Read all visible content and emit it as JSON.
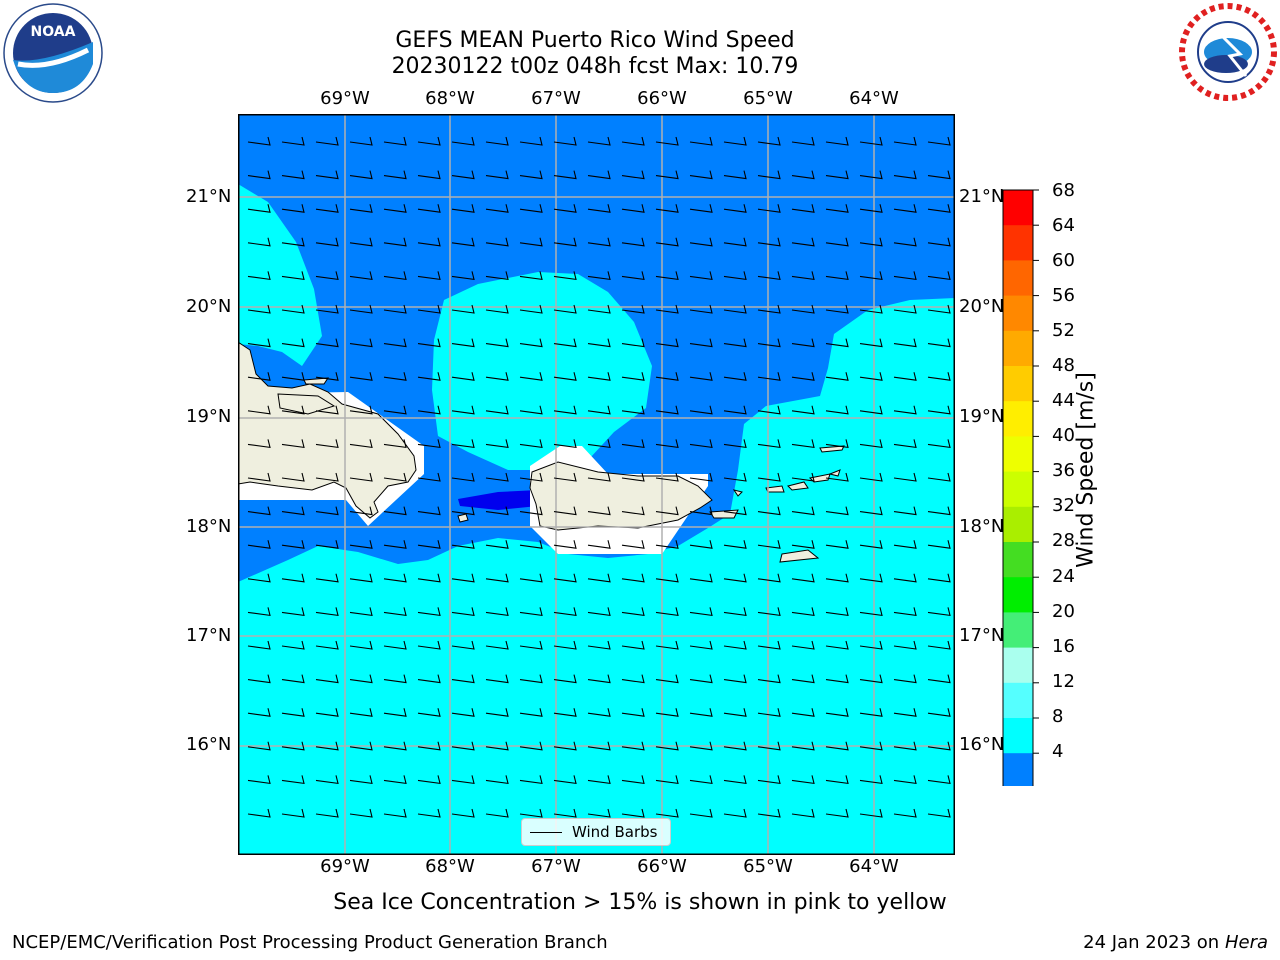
{
  "title_line1": "GEFS MEAN Puerto Rico Wind Speed",
  "title_line2": "20230122 t00z 048h fcst   Max: 10.79",
  "lon_labels": [
    "69°W",
    "68°W",
    "67°W",
    "66°W",
    "65°W",
    "64°W"
  ],
  "lat_labels": [
    "21°N",
    "20°N",
    "19°N",
    "18°N",
    "17°N",
    "16°N"
  ],
  "colorbar": {
    "label": "Wind Speed [m/s]",
    "ticks": [
      "68",
      "64",
      "60",
      "56",
      "52",
      "48",
      "44",
      "40",
      "36",
      "32",
      "28",
      "24",
      "20",
      "16",
      "12",
      "8",
      "4"
    ],
    "colors": [
      "#ff0000",
      "#ff3300",
      "#ff6600",
      "#ff8800",
      "#ffaa00",
      "#ffcc00",
      "#ffee00",
      "#eeff00",
      "#ccff00",
      "#aaee00",
      "#44dd22",
      "#00ee00",
      "#44ee77",
      "#aaffee",
      "#55ffff",
      "#00ffff",
      "#0080ff"
    ],
    "under_color": "#0000ee"
  },
  "legend_label": "Wind Barbs",
  "caption": "Sea Ice Concentration > 15% is shown in pink to yellow",
  "footer_left": "NCEP/EMC/Verification Post Processing Product Generation Branch",
  "footer_right_date": "24 Jan 2023 on ",
  "footer_right_host": "Hera",
  "logos": {
    "left": "noaa-logo",
    "right": "nws-logo",
    "left_text": "NOAA"
  },
  "colors": {
    "land": "#efefdf",
    "speed_4_8": "#0080ff",
    "speed_8_12": "#00ffff",
    "speed_below_4": "#0000ee"
  }
}
